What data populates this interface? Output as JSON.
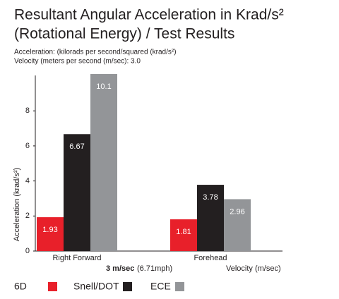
{
  "chart_data": {
    "type": "bar",
    "title": [
      "Resultant Angular Acceleration in Krad/s²",
      "(Rotational Energy) / Test Results"
    ],
    "subtitle": [
      "Acceleration: (kilorads per second/squared (krad/s²)",
      "Velocity (meters per second (m/sec): 3.0"
    ],
    "ylabel": "Acceleration (krad/s²)",
    "xlabel": "Velocity (m/sec)",
    "velocity_bold": "3 m/sec",
    "velocity_mph": "(6.71mph)",
    "categories": [
      "Right Forward",
      "Forehead"
    ],
    "series": [
      {
        "name": "6D",
        "color": "#e8202a",
        "values": [
          1.93,
          1.81
        ]
      },
      {
        "name": "Snell/DOT",
        "color": "#231f20",
        "values": [
          6.67,
          3.78
        ]
      },
      {
        "name": "ECE",
        "color": "#939598",
        "values": [
          10.1,
          2.96
        ]
      }
    ],
    "ylim": [
      0,
      10
    ],
    "yticks": [
      0,
      2,
      4,
      6,
      8
    ],
    "grid": false
  }
}
